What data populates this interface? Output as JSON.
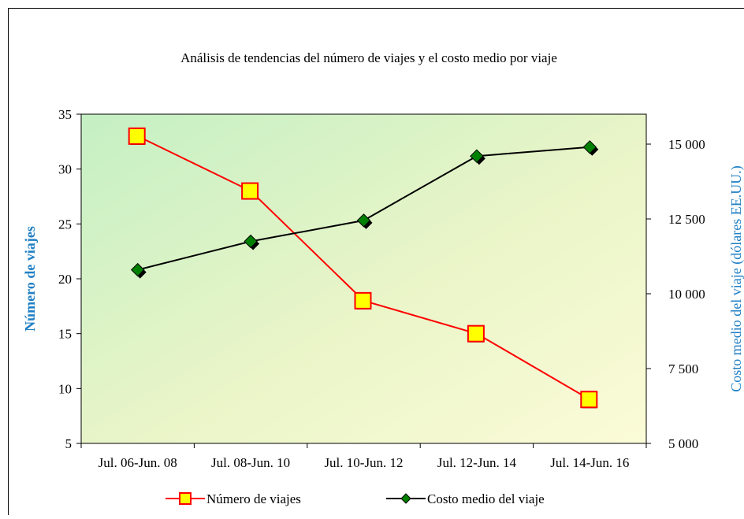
{
  "chart_data": {
    "type": "line",
    "title": "Análisis de tendencias del número de viajes y el costo medio por viaje",
    "y_label": "Número de viajes",
    "y2_label": "Costo medio del viaje (dólares EE.UU.)",
    "categories": [
      "Jul. 06-Jun. 08",
      "Jul. 08-Jun. 10",
      "Jul. 10-Jun. 12",
      "Jul. 12-Jun. 14",
      "Jul. 14-Jun. 16"
    ],
    "series": [
      {
        "name": "Número de viajes",
        "color": "#ff0000",
        "marker_color": "#ffff00",
        "values": [
          33,
          28,
          18,
          15,
          9
        ]
      },
      {
        "name": "Costo medio del viaje",
        "color": "#000000",
        "marker_color": "#008000",
        "axis": "y2",
        "values": [
          10800,
          11750,
          12450,
          14600,
          14900
        ]
      }
    ],
    "ylim": [
      5,
      35
    ],
    "yticks": [
      5,
      10,
      15,
      20,
      25,
      30,
      35
    ],
    "y2lim": [
      5000,
      16000
    ],
    "y2ticks": [
      {
        "value": 5000,
        "label": "5 000"
      },
      {
        "value": 7500,
        "label": "7 500"
      },
      {
        "value": 10000,
        "label": "10 000"
      },
      {
        "value": 12500,
        "label": "12 500"
      },
      {
        "value": 15000,
        "label": "15 000"
      }
    ],
    "legend": "bottom"
  }
}
